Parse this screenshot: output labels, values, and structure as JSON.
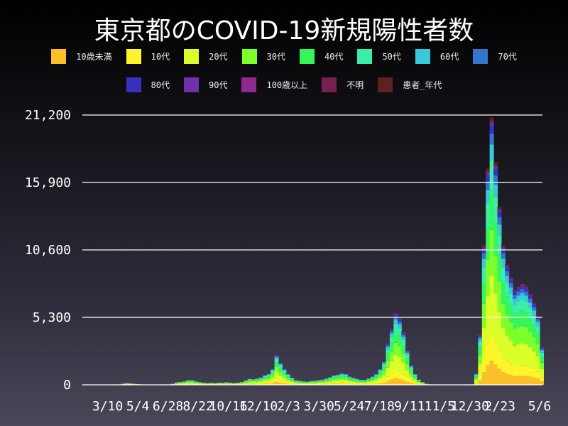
{
  "chart_data": {
    "type": "bar",
    "stacked": true,
    "title": "東京都のCOVID-19新規陽性者数",
    "xlabel": "",
    "ylabel": "",
    "ylim": [
      0,
      21200
    ],
    "y_ticks": [
      "0",
      "5,300",
      "10,600",
      "15,900",
      "21,200"
    ],
    "y_tick_values": [
      0,
      5300,
      10600,
      15900,
      21200
    ],
    "x_ticks": [
      {
        "label": "3/10",
        "date": "2020-03-10"
      },
      {
        "label": "5/4",
        "date": "2020-05-04"
      },
      {
        "label": "6/28",
        "date": "2020-06-28"
      },
      {
        "label": "8/22",
        "date": "2020-08-22"
      },
      {
        "label": "10/16",
        "date": "2020-10-16"
      },
      {
        "label": "12/10",
        "date": "2020-12-10"
      },
      {
        "label": "2/3",
        "date": "2021-02-03"
      },
      {
        "label": "3/30",
        "date": "2021-03-30"
      },
      {
        "label": "5/24",
        "date": "2021-05-24"
      },
      {
        "label": "7/18",
        "date": "2021-07-18"
      },
      {
        "label": "9/11",
        "date": "2021-09-11"
      },
      {
        "label": "11/5",
        "date": "2021-11-05"
      },
      {
        "label": "12/30",
        "date": "2021-12-30"
      },
      {
        "label": "2/23",
        "date": "2022-02-23"
      },
      {
        "label": "5/6",
        "date": "2022-05-06"
      }
    ],
    "grid": true,
    "legend_position": "top",
    "series": [
      {
        "name": "10歳未満",
        "color": "#fbbf2a",
        "share": 0.09
      },
      {
        "name": "10代",
        "color": "#fff52a",
        "share": 0.1
      },
      {
        "name": "20代",
        "color": "#dcff2a",
        "share": 0.22
      },
      {
        "name": "30代",
        "color": "#7cff2a",
        "share": 0.17
      },
      {
        "name": "40代",
        "color": "#36f55a",
        "share": 0.15
      },
      {
        "name": "50代",
        "color": "#3aeeaa",
        "share": 0.11
      },
      {
        "name": "60代",
        "color": "#38c8dc",
        "share": 0.06
      },
      {
        "name": "70代",
        "color": "#3575d0",
        "share": 0.04
      },
      {
        "name": "80代",
        "color": "#3a30c0",
        "share": 0.03
      },
      {
        "name": "90代",
        "color": "#7030a8",
        "share": 0.01
      },
      {
        "name": "100歳以上",
        "color": "#902890",
        "share": 0.0
      },
      {
        "name": "不明",
        "color": "#782050",
        "share": 0.01
      },
      {
        "name": "患者_年代",
        "color": "#602020",
        "share": 0.01
      }
    ],
    "totals": [
      [
        "2020-01-24",
        1
      ],
      [
        "2020-01-31",
        2
      ],
      [
        "2020-02-07",
        3
      ],
      [
        "2020-02-14",
        5
      ],
      [
        "2020-02-21",
        4
      ],
      [
        "2020-02-28",
        5
      ],
      [
        "2020-03-06",
        6
      ],
      [
        "2020-03-13",
        10
      ],
      [
        "2020-03-20",
        20
      ],
      [
        "2020-03-27",
        60
      ],
      [
        "2020-04-03",
        120
      ],
      [
        "2020-04-10",
        180
      ],
      [
        "2020-04-17",
        150
      ],
      [
        "2020-04-24",
        110
      ],
      [
        "2020-05-01",
        90
      ],
      [
        "2020-05-08",
        30
      ],
      [
        "2020-05-15",
        15
      ],
      [
        "2020-05-22",
        5
      ],
      [
        "2020-05-29",
        15
      ],
      [
        "2020-06-05",
        20
      ],
      [
        "2020-06-12",
        25
      ],
      [
        "2020-06-19",
        35
      ],
      [
        "2020-06-26",
        55
      ],
      [
        "2020-07-03",
        110
      ],
      [
        "2020-07-10",
        220
      ],
      [
        "2020-07-17",
        260
      ],
      [
        "2020-07-24",
        300
      ],
      [
        "2020-07-31",
        400
      ],
      [
        "2020-08-07",
        400
      ],
      [
        "2020-08-14",
        300
      ],
      [
        "2020-08-21",
        250
      ],
      [
        "2020-08-28",
        200
      ],
      [
        "2020-09-04",
        180
      ],
      [
        "2020-09-11",
        190
      ],
      [
        "2020-09-18",
        180
      ],
      [
        "2020-09-25",
        200
      ],
      [
        "2020-10-02",
        190
      ],
      [
        "2020-10-09",
        230
      ],
      [
        "2020-10-16",
        200
      ],
      [
        "2020-10-23",
        180
      ],
      [
        "2020-10-30",
        200
      ],
      [
        "2020-11-06",
        260
      ],
      [
        "2020-11-13",
        380
      ],
      [
        "2020-11-20",
        500
      ],
      [
        "2020-11-27",
        480
      ],
      [
        "2020-12-04",
        550
      ],
      [
        "2020-12-11",
        620
      ],
      [
        "2020-12-18",
        800
      ],
      [
        "2020-12-25",
        900
      ],
      [
        "2021-01-01",
        1300
      ],
      [
        "2021-01-08",
        2400
      ],
      [
        "2021-01-15",
        1800
      ],
      [
        "2021-01-22",
        1300
      ],
      [
        "2021-01-29",
        900
      ],
      [
        "2021-02-05",
        600
      ],
      [
        "2021-02-12",
        400
      ],
      [
        "2021-02-19",
        350
      ],
      [
        "2021-02-26",
        300
      ],
      [
        "2021-03-05",
        280
      ],
      [
        "2021-03-12",
        330
      ],
      [
        "2021-03-19",
        350
      ],
      [
        "2021-03-26",
        400
      ],
      [
        "2021-04-02",
        450
      ],
      [
        "2021-04-09",
        550
      ],
      [
        "2021-04-16",
        650
      ],
      [
        "2021-04-23",
        800
      ],
      [
        "2021-04-30",
        850
      ],
      [
        "2021-05-07",
        950
      ],
      [
        "2021-05-14",
        900
      ],
      [
        "2021-05-21",
        700
      ],
      [
        "2021-05-28",
        600
      ],
      [
        "2021-06-04",
        500
      ],
      [
        "2021-06-11",
        430
      ],
      [
        "2021-06-18",
        420
      ],
      [
        "2021-06-25",
        550
      ],
      [
        "2021-07-02",
        700
      ],
      [
        "2021-07-09",
        900
      ],
      [
        "2021-07-16",
        1300
      ],
      [
        "2021-07-23",
        1900
      ],
      [
        "2021-07-30",
        3300
      ],
      [
        "2021-08-06",
        4500
      ],
      [
        "2021-08-13",
        5700
      ],
      [
        "2021-08-20",
        5300
      ],
      [
        "2021-08-27",
        4200
      ],
      [
        "2021-09-03",
        2800
      ],
      [
        "2021-09-10",
        1600
      ],
      [
        "2021-09-17",
        900
      ],
      [
        "2021-09-24",
        450
      ],
      [
        "2021-10-01",
        250
      ],
      [
        "2021-10-08",
        120
      ],
      [
        "2021-10-15",
        70
      ],
      [
        "2021-10-22",
        35
      ],
      [
        "2021-10-29",
        25
      ],
      [
        "2021-11-05",
        25
      ],
      [
        "2021-11-12",
        25
      ],
      [
        "2021-11-19",
        20
      ],
      [
        "2021-11-26",
        20
      ],
      [
        "2021-12-03",
        15
      ],
      [
        "2021-12-10",
        20
      ],
      [
        "2021-12-17",
        25
      ],
      [
        "2021-12-24",
        40
      ],
      [
        "2021-12-31",
        70
      ],
      [
        "2022-01-07",
        900
      ],
      [
        "2022-01-14",
        4000
      ],
      [
        "2022-01-21",
        11000
      ],
      [
        "2022-01-28",
        17000
      ],
      [
        "2022-02-04",
        21000
      ],
      [
        "2022-02-11",
        17500
      ],
      [
        "2022-02-18",
        14000
      ],
      [
        "2022-02-25",
        11000
      ],
      [
        "2022-03-04",
        9500
      ],
      [
        "2022-03-11",
        8500
      ],
      [
        "2022-03-18",
        7500
      ],
      [
        "2022-03-25",
        7800
      ],
      [
        "2022-04-01",
        8000
      ],
      [
        "2022-04-08",
        7800
      ],
      [
        "2022-04-15",
        7200
      ],
      [
        "2022-04-22",
        6500
      ],
      [
        "2022-04-29",
        5500
      ],
      [
        "2022-05-06",
        3000
      ]
    ]
  }
}
